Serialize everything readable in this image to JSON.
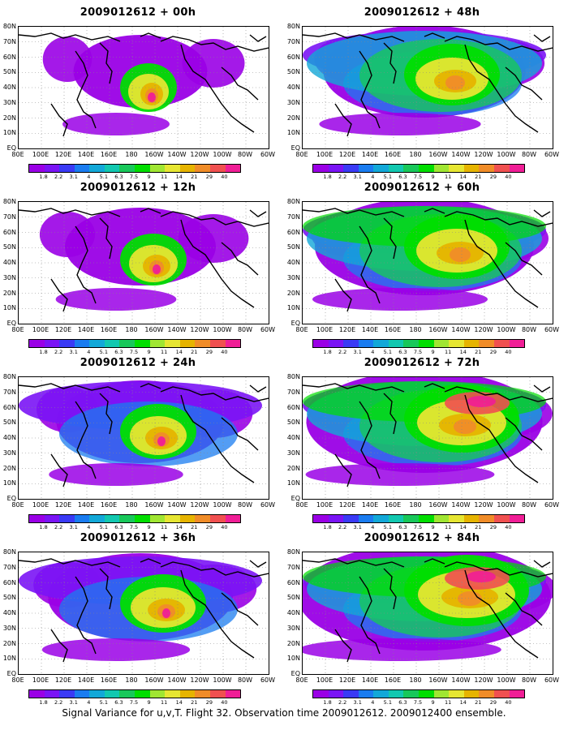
{
  "footer": "Signal Variance for u,v,T. Flight 32. Observation time 2009012612. 2009012400 ensemble.",
  "latitude_labels": [
    "80N",
    "70N",
    "60N",
    "50N",
    "40N",
    "30N",
    "20N",
    "10N",
    "EQ"
  ],
  "longitude_labels": [
    "80E",
    "100E",
    "120E",
    "140E",
    "160E",
    "180",
    "160W",
    "140W",
    "120W",
    "100W",
    "80W",
    "60W"
  ],
  "colorbar": {
    "labels": [
      "1.8",
      "2.2",
      "3.1",
      "4",
      "5.1",
      "6.3",
      "7.5",
      "9",
      "11",
      "14",
      "21",
      "29",
      "40"
    ],
    "colors": [
      "#9a00e6",
      "#7a14f5",
      "#3a3af5",
      "#1a7cf0",
      "#12a8d8",
      "#12c8b0",
      "#18c85a",
      "#00de00",
      "#a0e632",
      "#e6e632",
      "#e6b400",
      "#f08c28",
      "#f05050",
      "#f01e96"
    ]
  },
  "panels": [
    {
      "title": "2009012612 + 00h",
      "level": 0
    },
    {
      "title": "2009012612 + 48h",
      "level": 4
    },
    {
      "title": "2009012612 + 12h",
      "level": 1
    },
    {
      "title": "2009012612 + 60h",
      "level": 5
    },
    {
      "title": "2009012612 + 24h",
      "level": 2
    },
    {
      "title": "2009012612 + 72h",
      "level": 6
    },
    {
      "title": "2009012612 + 36h",
      "level": 3
    },
    {
      "title": "2009012612 + 84h",
      "level": 7
    }
  ]
}
